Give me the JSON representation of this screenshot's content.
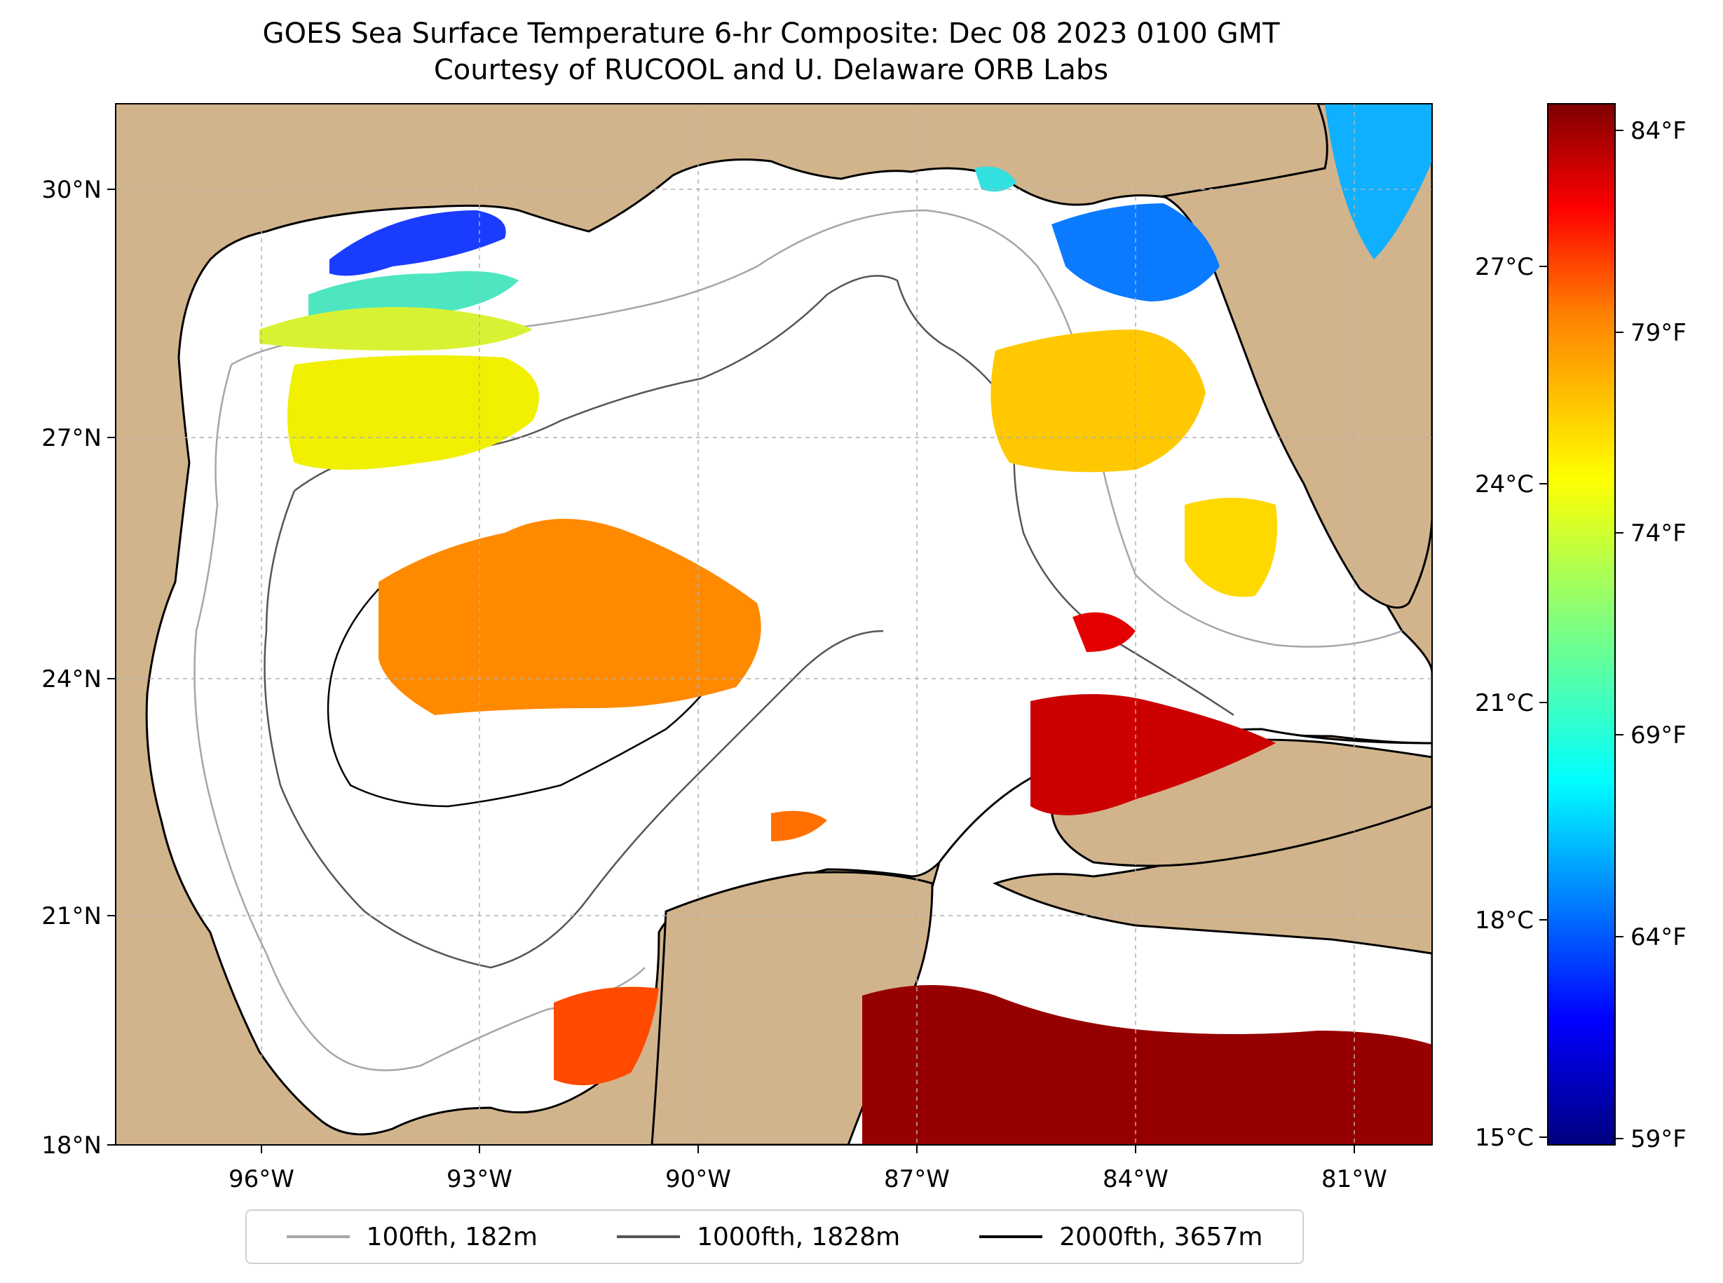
{
  "title": "GOES Sea Surface Temperature 6-hr Composite: Dec 08 2023 0100 GMT",
  "subtitle": "Courtesy of RUCOOL and U. Delaware ORB Labs",
  "map": {
    "lat_ticks": [
      "30°N",
      "27°N",
      "24°N",
      "21°N",
      "18°N"
    ],
    "lon_ticks": [
      "96°W",
      "93°W",
      "90°W",
      "87°W",
      "84°W",
      "81°W"
    ],
    "land_color": "#d2b48c",
    "ocean_color": "#ffffff",
    "lake_color": "#9ab8e0",
    "grid": true,
    "extent": {
      "lon": [
        -98,
        -79.8
      ],
      "lat": [
        18,
        31
      ]
    }
  },
  "colorbar": {
    "celsius_ticks": [
      "27°C",
      "24°C",
      "21°C",
      "18°C",
      "15°C"
    ],
    "fahrenheit_ticks": [
      "84°F",
      "79°F",
      "74°F",
      "69°F",
      "64°F",
      "59°F"
    ],
    "colormap": "jet",
    "colors": [
      "#00007f",
      "#0000ff",
      "#007fff",
      "#00ffff",
      "#7fff7f",
      "#ffff00",
      "#ff7f00",
      "#ff0000",
      "#7f0000"
    ]
  },
  "legend": [
    {
      "label": "100fth, 182m",
      "color": "#a6a6a6"
    },
    {
      "label": "1000fth, 1828m",
      "color": "#555555"
    },
    {
      "label": "2000fth, 3657m",
      "color": "#000000"
    }
  ]
}
